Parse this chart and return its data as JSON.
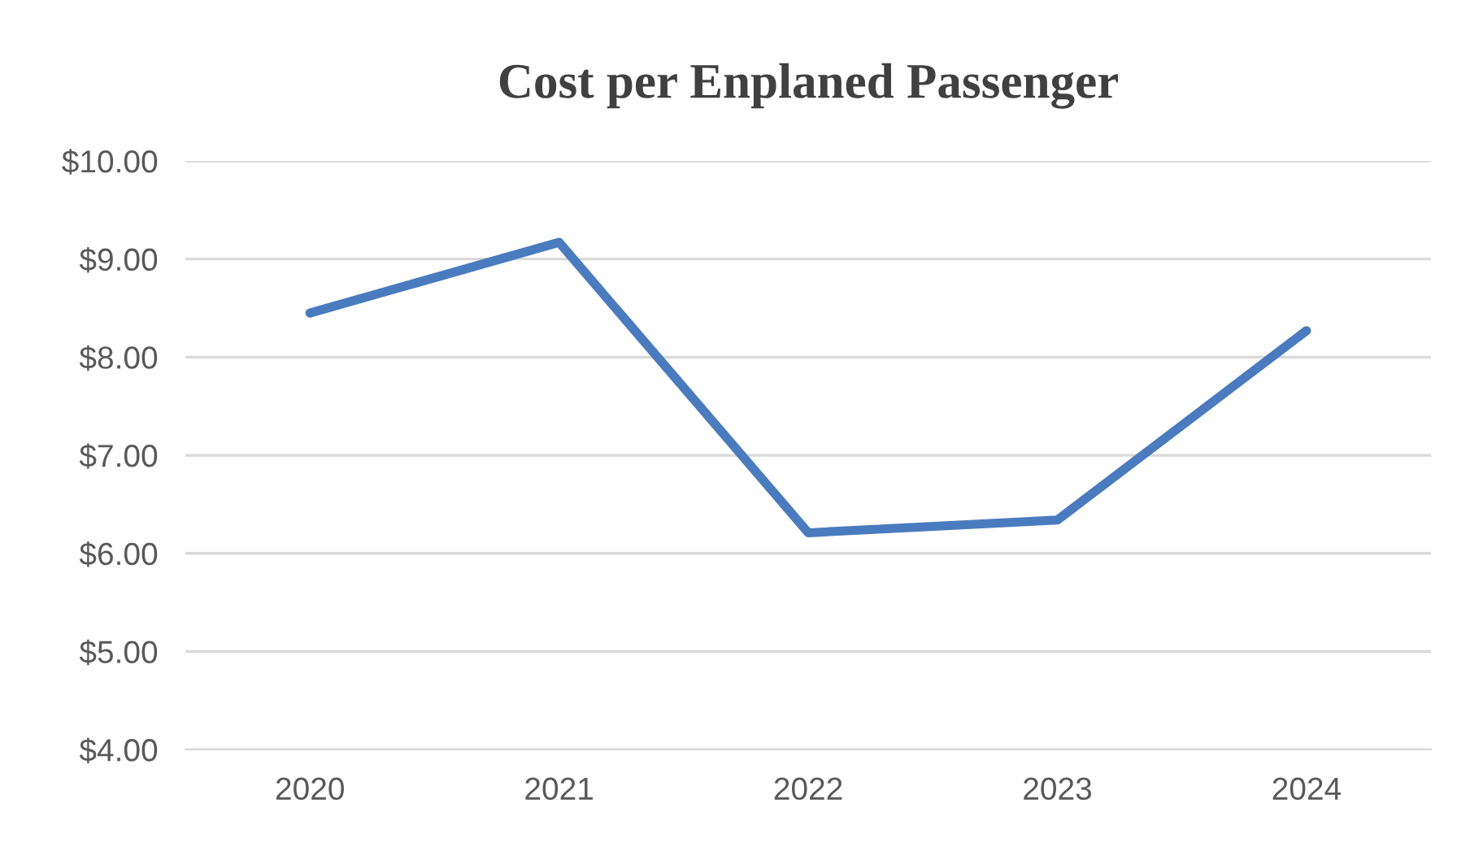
{
  "chart_data": {
    "type": "line",
    "title": "Cost per Enplaned Passenger",
    "categories": [
      "2020",
      "2021",
      "2022",
      "2023",
      "2024"
    ],
    "series": [
      {
        "color": "#4a7bbf",
        "values": [
          8.45,
          9.17,
          6.21,
          6.34,
          8.27
        ]
      }
    ],
    "ylim": [
      4,
      10
    ],
    "yticks": [
      {
        "value": 4,
        "label": "$4.00"
      },
      {
        "value": 5,
        "label": "$5.00"
      },
      {
        "value": 6,
        "label": "$6.00"
      },
      {
        "value": 7,
        "label": "$7.00"
      },
      {
        "value": 8,
        "label": "$8.00"
      },
      {
        "value": 9,
        "label": "$9.00"
      },
      {
        "value": 10,
        "label": "$10.00"
      }
    ],
    "grid": "y",
    "marker": "none",
    "line_style": "solid"
  }
}
